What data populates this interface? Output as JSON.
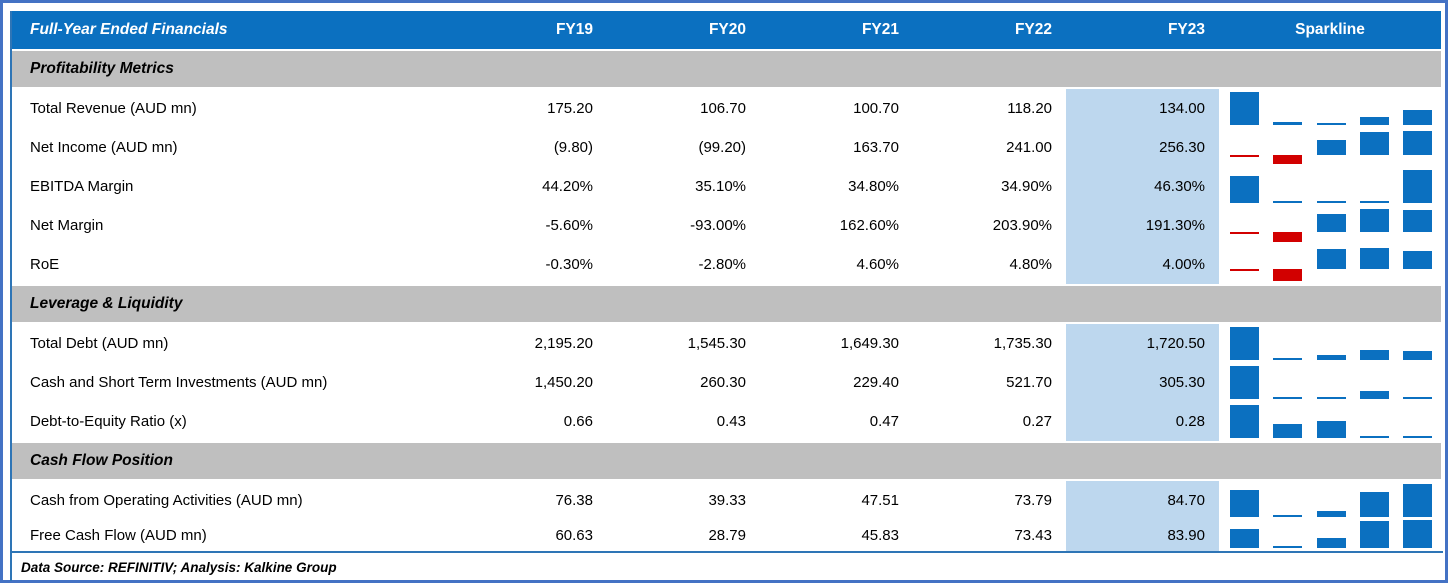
{
  "header": {
    "title": "Full-Year Ended Financials",
    "columns": [
      "FY19",
      "FY20",
      "FY21",
      "FY22",
      "FY23"
    ],
    "sparkline_label": "Sparkline"
  },
  "sections": [
    {
      "label": "Profitability Metrics",
      "rows": [
        {
          "label": "Total Revenue (AUD mn)",
          "values": [
            "175.20",
            "106.70",
            "100.70",
            "118.20",
            "134.00"
          ],
          "numeric": [
            175.2,
            106.7,
            100.7,
            118.2,
            134.0
          ]
        },
        {
          "label": "Net Income (AUD mn)",
          "values": [
            "(9.80)",
            "(99.20)",
            "163.70",
            "241.00",
            "256.30"
          ],
          "numeric": [
            -9.8,
            -99.2,
            163.7,
            241.0,
            256.3
          ]
        },
        {
          "label": "EBITDA Margin",
          "values": [
            "44.20%",
            "35.10%",
            "34.80%",
            "34.90%",
            "46.30%"
          ],
          "numeric": [
            44.2,
            35.1,
            34.8,
            34.9,
            46.3
          ]
        },
        {
          "label": "Net Margin",
          "values": [
            "-5.60%",
            "-93.00%",
            "162.60%",
            "203.90%",
            "191.30%"
          ],
          "numeric": [
            -5.6,
            -93.0,
            162.6,
            203.9,
            191.3
          ]
        },
        {
          "label": "RoE",
          "values": [
            "-0.30%",
            "-2.80%",
            "4.60%",
            "4.80%",
            "4.00%"
          ],
          "numeric": [
            -0.3,
            -2.8,
            4.6,
            4.8,
            4.0
          ]
        }
      ]
    },
    {
      "label": "Leverage & Liquidity",
      "rows": [
        {
          "label": "Total Debt (AUD mn)",
          "values": [
            "2,195.20",
            "1,545.30",
            "1,649.30",
            "1,735.30",
            "1,720.50"
          ],
          "numeric": [
            2195.2,
            1545.3,
            1649.3,
            1735.3,
            1720.5
          ]
        },
        {
          "label": "Cash and Short Term Investments (AUD mn)",
          "values": [
            "1,450.20",
            "260.30",
            "229.40",
            "521.70",
            "305.30"
          ],
          "numeric": [
            1450.2,
            260.3,
            229.4,
            521.7,
            305.3
          ]
        },
        {
          "label": "Debt-to-Equity Ratio (x)",
          "values": [
            "0.66",
            "0.43",
            "0.47",
            "0.27",
            "0.28"
          ],
          "numeric": [
            0.66,
            0.43,
            0.47,
            0.27,
            0.28
          ]
        }
      ]
    },
    {
      "label": "Cash Flow Position",
      "rows": [
        {
          "label": "Cash from Operating Activities (AUD mn)",
          "values": [
            "76.38",
            "39.33",
            "47.51",
            "73.79",
            "84.70"
          ],
          "numeric": [
            76.38,
            39.33,
            47.51,
            73.79,
            84.7
          ]
        },
        {
          "label": "Free Cash Flow (AUD mn)",
          "values": [
            "60.63",
            "28.79",
            "45.83",
            "73.43",
            "83.90"
          ],
          "numeric": [
            60.63,
            28.79,
            45.83,
            73.43,
            83.9
          ]
        }
      ]
    }
  ],
  "footer": {
    "text": "Data Source: REFINITIV; Analysis: Kalkine Group"
  },
  "colors": {
    "header_bg": "#0B70C0",
    "section_bg": "#BFBFBF",
    "fy23_highlight_bg": "#BDD7EE",
    "sparkline_positive": "#0B70C0",
    "sparkline_negative": "#D20000",
    "frame_border": "#4472C4",
    "rule_blue": "#2E75B6"
  },
  "chart_data": {
    "type": "table",
    "title": "Full-Year Ended Financials",
    "categories": [
      "FY19",
      "FY20",
      "FY21",
      "FY22",
      "FY23"
    ],
    "highlighted_column": "FY23",
    "series": [
      {
        "name": "Total Revenue (AUD mn)",
        "values": [
          175.2,
          106.7,
          100.7,
          118.2,
          134.0
        ]
      },
      {
        "name": "Net Income (AUD mn)",
        "values": [
          -9.8,
          -99.2,
          163.7,
          241.0,
          256.3
        ]
      },
      {
        "name": "EBITDA Margin (%)",
        "values": [
          44.2,
          35.1,
          34.8,
          34.9,
          46.3
        ]
      },
      {
        "name": "Net Margin (%)",
        "values": [
          -5.6,
          -93.0,
          162.6,
          203.9,
          191.3
        ]
      },
      {
        "name": "RoE (%)",
        "values": [
          -0.3,
          -2.8,
          4.6,
          4.8,
          4.0
        ]
      },
      {
        "name": "Total Debt (AUD mn)",
        "values": [
          2195.2,
          1545.3,
          1649.3,
          1735.3,
          1720.5
        ]
      },
      {
        "name": "Cash and Short Term Investments (AUD mn)",
        "values": [
          1450.2,
          260.3,
          229.4,
          521.7,
          305.3
        ]
      },
      {
        "name": "Debt-to-Equity Ratio (x)",
        "values": [
          0.66,
          0.43,
          0.47,
          0.27,
          0.28
        ]
      },
      {
        "name": "Cash from Operating Activities (AUD mn)",
        "values": [
          76.38,
          39.33,
          47.51,
          73.79,
          84.7
        ]
      },
      {
        "name": "Free Cash Flow (AUD mn)",
        "values": [
          60.63,
          28.79,
          45.83,
          73.43,
          83.9
        ]
      }
    ],
    "sparkline_note": "Each row ends with a column sparkline of FY19-FY23 values; positive bars blue, negative bars red"
  }
}
